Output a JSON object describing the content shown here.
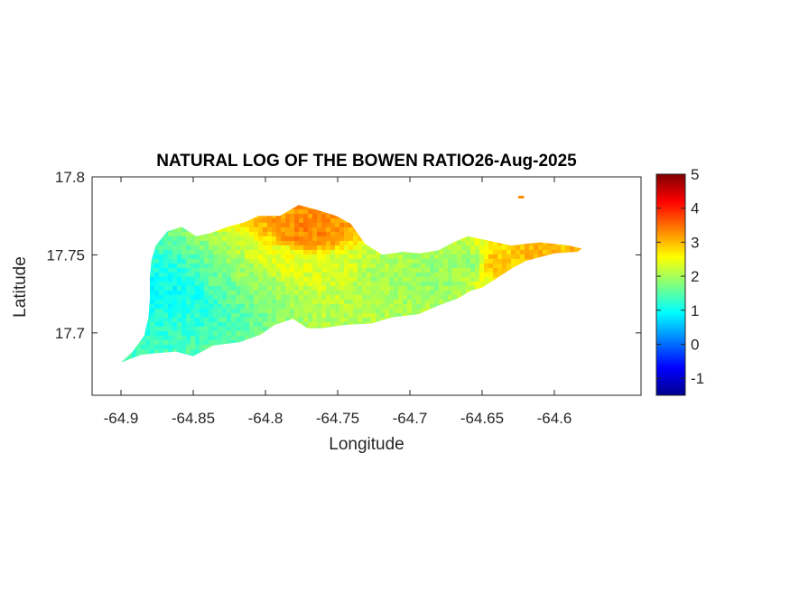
{
  "figure": {
    "title": "NATURAL LOG OF THE BOWEN RATIO26-Aug-2025",
    "xlabel": "Longitude",
    "ylabel": "Latitude"
  },
  "chart_data": {
    "type": "heatmap",
    "title": "NATURAL LOG OF THE BOWEN RATIO26-Aug-2025",
    "xlabel": "Longitude",
    "ylabel": "Latitude",
    "xlim": [
      -64.92,
      -64.54
    ],
    "ylim": [
      17.66,
      17.8
    ],
    "x_ticks": [
      -64.9,
      -64.85,
      -64.8,
      -64.75,
      -64.7,
      -64.65,
      -64.6
    ],
    "x_tick_labels": [
      "-64.9",
      "-64.85",
      "-64.8",
      "-64.75",
      "-64.7",
      "-64.65",
      "-64.6"
    ],
    "y_ticks": [
      17.7,
      17.75,
      17.8
    ],
    "y_tick_labels": [
      "17.7",
      "17.75",
      "17.8"
    ],
    "colorbar": {
      "colormap": "jet",
      "clim": [
        -1.5,
        5
      ],
      "ticks": [
        -1,
        0,
        1,
        2,
        3,
        4,
        5
      ],
      "tick_labels": [
        "-1",
        "0",
        "1",
        "2",
        "3",
        "4",
        "5"
      ],
      "location": "right"
    },
    "grid": false,
    "outline_lonlat": [
      [
        -64.9,
        17.681
      ],
      [
        -64.892,
        17.688
      ],
      [
        -64.884,
        17.698
      ],
      [
        -64.881,
        17.71
      ],
      [
        -64.88,
        17.722
      ],
      [
        -64.88,
        17.735
      ],
      [
        -64.879,
        17.746
      ],
      [
        -64.876,
        17.756
      ],
      [
        -64.868,
        17.765
      ],
      [
        -64.858,
        17.768
      ],
      [
        -64.848,
        17.762
      ],
      [
        -64.838,
        17.764
      ],
      [
        -64.826,
        17.768
      ],
      [
        -64.814,
        17.771
      ],
      [
        -64.805,
        17.775
      ],
      [
        -64.79,
        17.775
      ],
      [
        -64.777,
        17.782
      ],
      [
        -64.765,
        17.779
      ],
      [
        -64.751,
        17.775
      ],
      [
        -64.741,
        17.77
      ],
      [
        -64.731,
        17.757
      ],
      [
        -64.719,
        17.75
      ],
      [
        -64.705,
        17.752
      ],
      [
        -64.693,
        17.751
      ],
      [
        -64.68,
        17.753
      ],
      [
        -64.67,
        17.758
      ],
      [
        -64.66,
        17.762
      ],
      [
        -64.65,
        17.76
      ],
      [
        -64.64,
        17.758
      ],
      [
        -64.63,
        17.756
      ],
      [
        -64.62,
        17.757
      ],
      [
        -64.61,
        17.758
      ],
      [
        -64.6,
        17.757
      ],
      [
        -64.59,
        17.756
      ],
      [
        -64.581,
        17.754
      ],
      [
        -64.584,
        17.752
      ],
      [
        -64.6,
        17.751
      ],
      [
        -64.62,
        17.746
      ],
      [
        -64.63,
        17.741
      ],
      [
        -64.64,
        17.735
      ],
      [
        -64.65,
        17.729
      ],
      [
        -64.658,
        17.727
      ],
      [
        -64.667,
        17.722
      ],
      [
        -64.679,
        17.718
      ],
      [
        -64.694,
        17.712
      ],
      [
        -64.712,
        17.71
      ],
      [
        -64.727,
        17.706
      ],
      [
        -64.746,
        17.705
      ],
      [
        -64.761,
        17.703
      ],
      [
        -64.771,
        17.703
      ],
      [
        -64.781,
        17.709
      ],
      [
        -64.794,
        17.705
      ],
      [
        -64.803,
        17.699
      ],
      [
        -64.818,
        17.694
      ],
      [
        -64.836,
        17.692
      ],
      [
        -64.85,
        17.685
      ],
      [
        -64.862,
        17.688
      ],
      [
        -64.875,
        17.687
      ],
      [
        -64.886,
        17.686
      ],
      [
        -64.9,
        17.681
      ]
    ],
    "islet_lonlat": [
      [
        -64.625,
        17.787
      ],
      [
        -64.621,
        17.787
      ]
    ],
    "field_description_points": [
      {
        "lon": -64.87,
        "lat": 17.73,
        "value": 1.0
      },
      {
        "lon": -64.85,
        "lat": 17.725,
        "value": 1.1
      },
      {
        "lon": -64.83,
        "lat": 17.73,
        "value": 1.6
      },
      {
        "lon": -64.81,
        "lat": 17.735,
        "value": 1.9
      },
      {
        "lon": -64.79,
        "lat": 17.745,
        "value": 2.4
      },
      {
        "lon": -64.77,
        "lat": 17.765,
        "value": 3.3
      },
      {
        "lon": -64.75,
        "lat": 17.74,
        "value": 2.3
      },
      {
        "lon": -64.72,
        "lat": 17.735,
        "value": 2.0
      },
      {
        "lon": -64.69,
        "lat": 17.735,
        "value": 1.9
      },
      {
        "lon": -64.66,
        "lat": 17.745,
        "value": 1.9
      },
      {
        "lon": -64.64,
        "lat": 17.745,
        "value": 2.9
      },
      {
        "lon": -64.61,
        "lat": 17.75,
        "value": 3.0
      },
      {
        "lon": -64.59,
        "lat": 17.755,
        "value": 3.0
      }
    ]
  }
}
